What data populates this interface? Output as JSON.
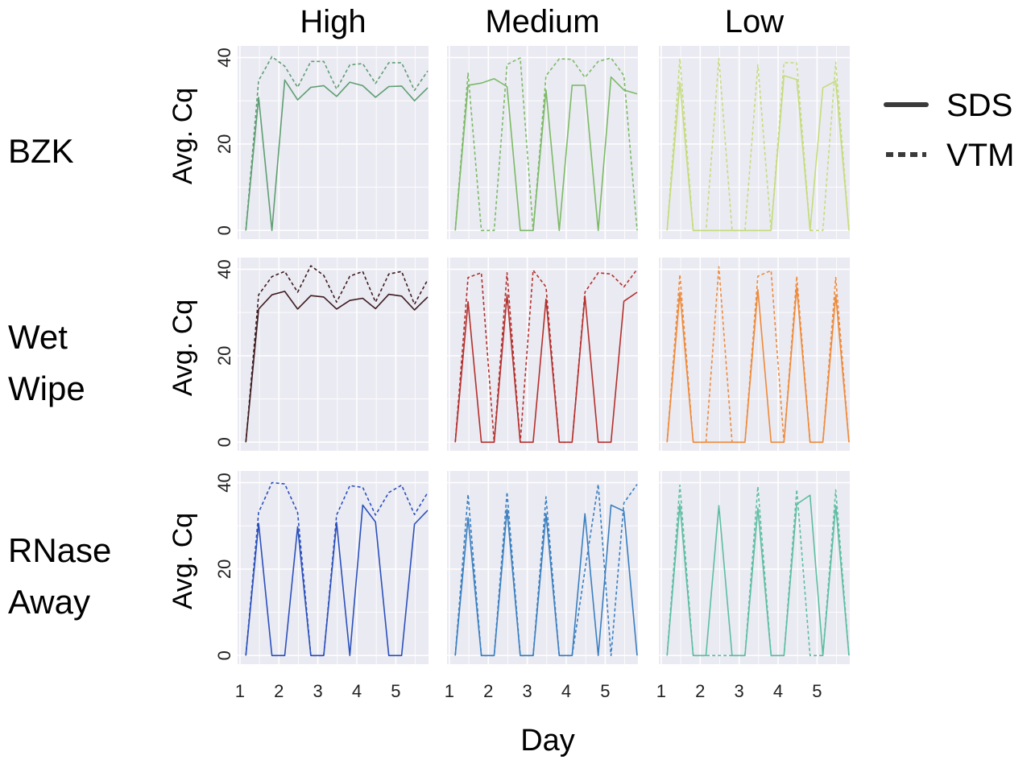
{
  "chart_data": {
    "type": "line",
    "layout": "facet-grid",
    "xlabel": "Day",
    "ylabel": "Avg. Cq",
    "xticks": [
      1,
      2,
      3,
      4,
      5
    ],
    "yticks": [
      0,
      20,
      40
    ],
    "xlim": [
      0.94,
      5.84
    ],
    "ylim": [
      -2,
      42.7
    ],
    "grid": true,
    "legend_position": "right",
    "legend": [
      {
        "name": "SDS",
        "style": "solid"
      },
      {
        "name": "VTM",
        "style": "dashed"
      }
    ],
    "columns": [
      "High",
      "Medium",
      "Low"
    ],
    "rows": [
      {
        "label_lines": [
          "BZK"
        ]
      },
      {
        "label_lines": [
          "Wet",
          "Wipe"
        ]
      },
      {
        "label_lines": [
          "RNase",
          "Away"
        ]
      }
    ],
    "x": [
      1.15,
      1.48,
      1.82,
      2.15,
      2.48,
      2.82,
      3.15,
      3.48,
      3.82,
      4.15,
      4.48,
      4.82,
      5.15,
      5.48,
      5.82
    ],
    "panels": [
      [
        {
          "color": "#5e9e72",
          "SDS": [
            0,
            30.8,
            0,
            34.8,
            30.2,
            33.1,
            33.5,
            31,
            34.3,
            33.5,
            30.8,
            33.3,
            33.4,
            30,
            33
          ],
          "VTM": [
            0,
            34.7,
            40.2,
            38,
            33.1,
            39.1,
            39.1,
            32.7,
            38.3,
            38.6,
            34,
            38.8,
            38.8,
            32.4,
            36.9
          ]
        },
        {
          "color": "#7cba66",
          "SDS": [
            0,
            33.6,
            34.1,
            35.1,
            33.3,
            0,
            0,
            32.5,
            0,
            33.6,
            33.6,
            0,
            35.5,
            32.5,
            31.6
          ],
          "VTM": [
            0,
            36.4,
            0,
            0,
            38.4,
            39.9,
            0,
            35.8,
            39.7,
            39.6,
            35.4,
            39.1,
            39.9,
            35.8,
            0
          ]
        },
        {
          "color": "#c5dc7c",
          "SDS": [
            0,
            34.3,
            0,
            0,
            0,
            0,
            0,
            0,
            0,
            35.8,
            34.9,
            0,
            33,
            34.6,
            0
          ],
          "VTM": [
            0,
            39.8,
            0,
            0,
            39.8,
            0,
            0,
            38.3,
            0,
            38.8,
            38.8,
            0,
            0,
            38.9,
            0
          ]
        }
      ],
      [
        {
          "color": "#3d1c1e",
          "SDS": [
            0,
            30.8,
            34.1,
            34.9,
            30.8,
            33.9,
            33.6,
            30.8,
            32.8,
            33.3,
            30.9,
            34.2,
            33.8,
            30.6,
            33.6
          ],
          "VTM": [
            0,
            34.1,
            38.3,
            39.5,
            34.7,
            40.8,
            38.6,
            32.4,
            38.4,
            39.5,
            32.4,
            38.9,
            39.5,
            31.9,
            37.6
          ]
        },
        {
          "color": "#b3302c",
          "SDS": [
            0,
            32.5,
            0,
            0,
            34.1,
            0,
            0,
            33.1,
            0,
            0,
            33.8,
            0,
            0,
            32.6,
            34.7
          ],
          "VTM": [
            0,
            38.1,
            39.2,
            0,
            39.2,
            0,
            39.8,
            35.9,
            0,
            0,
            34.7,
            39.2,
            38.9,
            35.9,
            40
          ]
        },
        {
          "color": "#ee8a3a",
          "SDS": [
            0,
            34.7,
            0,
            0,
            0,
            0,
            0,
            35.3,
            0,
            0,
            35.9,
            0,
            0,
            34.1,
            0
          ],
          "VTM": [
            0,
            38.8,
            0,
            0,
            40.6,
            0,
            0,
            38.4,
            39.7,
            0,
            38.4,
            0,
            0,
            38.1,
            0
          ]
        }
      ],
      [
        {
          "color": "#2b50bb",
          "SDS": [
            0,
            30.6,
            0,
            0,
            29.8,
            0,
            0,
            30.8,
            0,
            34.8,
            30.9,
            0,
            0,
            30.4,
            33.6
          ],
          "VTM": [
            0,
            33.1,
            40,
            39.7,
            33.1,
            0,
            0,
            32.5,
            39.3,
            38.9,
            32.5,
            37.7,
            39.4,
            32.6,
            37.7
          ]
        },
        {
          "color": "#3a7fbf",
          "SDS": [
            0,
            31.9,
            0,
            0,
            33.8,
            0,
            0,
            32.8,
            0,
            0,
            32.8,
            0,
            34.8,
            33.4,
            0
          ],
          "VTM": [
            0,
            37.3,
            0,
            0,
            37.8,
            0,
            0,
            36.7,
            0,
            0,
            19.7,
            39.6,
            0,
            35.3,
            39.6
          ]
        },
        {
          "color": "#5dbea2",
          "SDS": [
            0,
            35,
            0,
            0,
            34.7,
            0,
            0,
            34.1,
            0,
            0,
            35,
            37.1,
            0,
            34.7,
            0
          ],
          "VTM": [
            0,
            39.4,
            0,
            0,
            0,
            0,
            0,
            39.1,
            0,
            0,
            38.4,
            0,
            0,
            38.3,
            0
          ]
        }
      ]
    ],
    "colors": {
      "panel_background": "#eaeaf2",
      "grid": "#ffffff",
      "legend_line": "#3a3a3a"
    }
  }
}
